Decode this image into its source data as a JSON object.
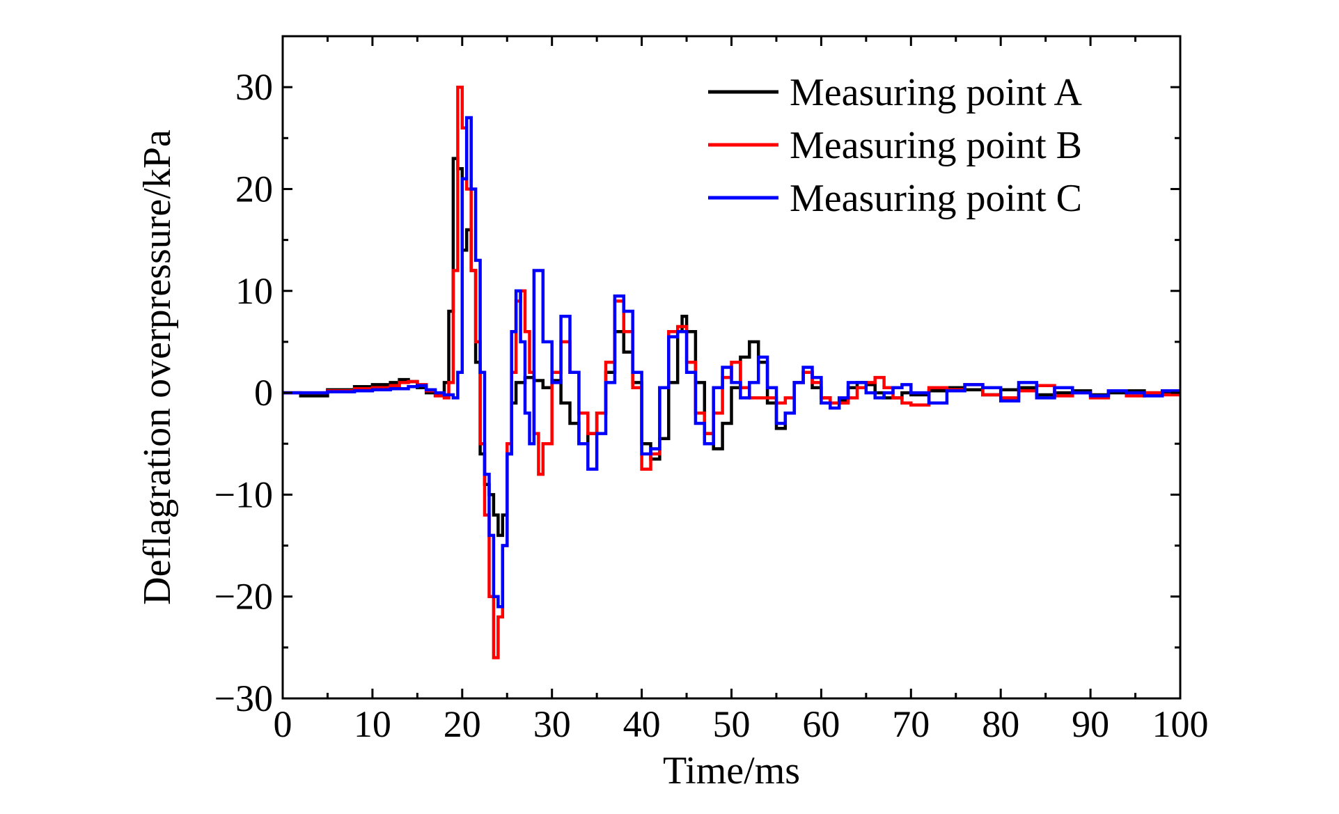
{
  "chart_data": {
    "type": "line",
    "title": "",
    "xlabel": "Time/ms",
    "ylabel": "Deflagration overpressure/kPa",
    "xlim": [
      0,
      100
    ],
    "ylim": [
      -30,
      35
    ],
    "x_ticks": [
      0,
      10,
      20,
      30,
      40,
      50,
      60,
      70,
      80,
      90,
      100
    ],
    "y_ticks": [
      -30,
      -20,
      -10,
      0,
      10,
      20,
      30
    ],
    "x_tick_labels": [
      "0",
      "10",
      "20",
      "30",
      "40",
      "50",
      "60",
      "70",
      "80",
      "90",
      "100"
    ],
    "y_tick_labels": [
      "−30",
      "−20",
      "−10",
      "0",
      "10",
      "20",
      "30"
    ],
    "grid": false,
    "legend_position": "top-right",
    "series": [
      {
        "name": "Measuring point A",
        "color": "#000000",
        "x": [
          0,
          2,
          5,
          8,
          10,
          12,
          13,
          14,
          15,
          16,
          17,
          18,
          18.5,
          19,
          19.5,
          20,
          20.5,
          21,
          21.5,
          22,
          22.5,
          23,
          23.5,
          24,
          24.5,
          25,
          25.5,
          26,
          27,
          28,
          29,
          30,
          31,
          32,
          33,
          34,
          35,
          36,
          37,
          38,
          39,
          40,
          41,
          42,
          43,
          44,
          44.5,
          45,
          46,
          47,
          48,
          49,
          50,
          51,
          52,
          53,
          54,
          55,
          56,
          57,
          58,
          59,
          60,
          61,
          62,
          63,
          64,
          65,
          66,
          67,
          68,
          69,
          70,
          72,
          74,
          76,
          78,
          80,
          82,
          84,
          86,
          88,
          90,
          92,
          94,
          96,
          98,
          100
        ],
        "values": [
          0,
          -0.3,
          0.3,
          0.6,
          0.8,
          1.0,
          1.3,
          1.1,
          0.5,
          0.0,
          -0.2,
          1.0,
          8.0,
          23.0,
          22.0,
          14.0,
          16.0,
          12.0,
          3.0,
          -6.0,
          -9.0,
          -10.0,
          -12.0,
          -14.0,
          -12.0,
          -6.0,
          -1.0,
          1.0,
          1.5,
          1.2,
          0.5,
          1.2,
          -1.0,
          -3.0,
          -5.0,
          -4.0,
          -2.0,
          2.0,
          6.0,
          4.0,
          1.0,
          -5.0,
          -6.5,
          -4.5,
          1.0,
          6.0,
          7.5,
          6.0,
          1.0,
          -4.0,
          -5.5,
          -3.0,
          0.5,
          3.5,
          5.0,
          3.0,
          -1.0,
          -3.5,
          -2.0,
          1.0,
          2.0,
          0.5,
          -0.5,
          -1.0,
          -0.8,
          0.5,
          1.0,
          0.8,
          0.0,
          -0.5,
          -0.5,
          0.0,
          -0.2,
          0.2,
          0.5,
          0.3,
          -0.2,
          0.3,
          0.5,
          -0.2,
          0.0,
          0.2,
          -0.2,
          0.0,
          0.2,
          0.0,
          -0.1,
          0.0
        ]
      },
      {
        "name": "Measuring point B",
        "color": "#ff0000",
        "x": [
          0,
          2,
          5,
          8,
          10,
          12,
          13,
          14,
          15,
          16,
          17,
          18,
          18.5,
          19,
          19.5,
          20,
          20.5,
          21,
          21.5,
          22,
          22.5,
          23,
          23.5,
          24,
          24.5,
          25,
          25.5,
          26,
          26.5,
          27,
          27.5,
          28,
          28.5,
          29,
          30,
          31,
          32,
          33,
          34,
          35,
          36,
          37,
          38,
          39,
          40,
          41,
          42,
          43,
          44,
          45,
          46,
          47,
          48,
          49,
          50,
          51,
          52,
          53,
          54,
          55,
          56,
          57,
          58,
          59,
          60,
          61,
          62,
          63,
          64,
          65,
          66,
          67,
          68,
          69,
          70,
          72,
          74,
          76,
          78,
          80,
          82,
          84,
          86,
          88,
          90,
          92,
          94,
          96,
          98,
          100
        ],
        "values": [
          0,
          0,
          0.2,
          0.4,
          0.5,
          0.7,
          1.0,
          1.1,
          0.8,
          0.2,
          -0.3,
          -0.5,
          1.0,
          12.0,
          30.0,
          26.0,
          20.0,
          12.0,
          5.0,
          -5.0,
          -12.0,
          -20.0,
          -26.0,
          -22.0,
          -15.0,
          -5.0,
          2.0,
          9.0,
          10.0,
          6.0,
          2.0,
          -4.0,
          -8.0,
          -5.0,
          2.0,
          5.0,
          2.0,
          -2.0,
          -4.0,
          -2.0,
          3.0,
          9.0,
          6.0,
          0.5,
          -7.5,
          -6.0,
          0.5,
          6.0,
          6.5,
          3.0,
          -2.0,
          -4.0,
          -2.0,
          1.5,
          3.0,
          0.5,
          -0.5,
          -0.5,
          -0.5,
          -1.0,
          -0.5,
          1.0,
          2.0,
          1.0,
          -0.5,
          -1.0,
          -1.0,
          -0.5,
          0.5,
          1.0,
          1.5,
          0.5,
          -0.5,
          -1.0,
          -1.2,
          0.5,
          0.3,
          0.8,
          -0.2,
          -0.5,
          0.2,
          0.7,
          -0.3,
          0.0,
          -0.5,
          0.2,
          -0.3,
          0.0,
          -0.2,
          0.0
        ]
      },
      {
        "name": "Measuring point C",
        "color": "#0000ff",
        "x": [
          0,
          2,
          5,
          8,
          10,
          12,
          14,
          15,
          16,
          17,
          18,
          19,
          19.5,
          20,
          20.5,
          21,
          21.5,
          22,
          22.5,
          23,
          23.5,
          24,
          24.5,
          25,
          25.5,
          26,
          26.5,
          27,
          27.5,
          28,
          29,
          30,
          31,
          32,
          33,
          34,
          35,
          36,
          37,
          38,
          39,
          40,
          41,
          42,
          43,
          44,
          45,
          46,
          47,
          48,
          49,
          50,
          51,
          52,
          53,
          54,
          55,
          56,
          57,
          58,
          59,
          60,
          61,
          62,
          63,
          64,
          65,
          66,
          67,
          68,
          69,
          70,
          72,
          74,
          76,
          78,
          80,
          82,
          84,
          86,
          88,
          90,
          92,
          94,
          96,
          98,
          100
        ],
        "values": [
          0,
          0,
          0.1,
          0.2,
          0.3,
          0.4,
          0.6,
          0.7,
          0.3,
          0.0,
          -0.2,
          -0.5,
          2.0,
          21.0,
          27.0,
          20.0,
          13.0,
          2.0,
          -8.0,
          -14.0,
          -20.0,
          -21.0,
          -15.0,
          -6.0,
          6.0,
          10.0,
          5.0,
          -2.0,
          -5.0,
          12.0,
          5.0,
          1.0,
          7.5,
          2.0,
          -5.0,
          -7.5,
          -4.0,
          1.0,
          9.5,
          8.0,
          2.0,
          -6.0,
          -5.5,
          0.5,
          5.5,
          6.0,
          2.0,
          -3.0,
          -5.0,
          0.5,
          2.5,
          1.0,
          -0.5,
          1.0,
          3.5,
          0.5,
          -3.0,
          -2.0,
          1.0,
          2.5,
          1.5,
          -1.0,
          -1.5,
          -0.5,
          1.0,
          1.0,
          0.0,
          -0.5,
          0.0,
          0.5,
          0.8,
          0.0,
          -1.0,
          0.2,
          0.8,
          0.5,
          -0.8,
          1.0,
          -0.5,
          0.5,
          0.0,
          -0.3,
          0.2,
          0.0,
          -0.3,
          0.2,
          0.0
        ]
      }
    ]
  }
}
